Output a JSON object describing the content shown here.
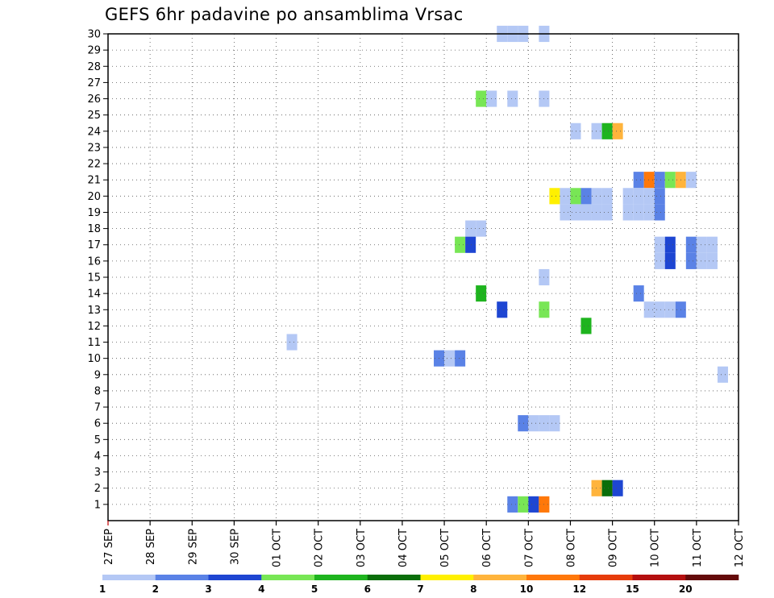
{
  "chart_data": {
    "type": "heatmap",
    "title": "GEFS 6hr padavine po ansamblima Vrsac",
    "xlabel": "",
    "ylabel": "",
    "x_ticks": [
      "27 SEP",
      "28 SEP",
      "29 SEP",
      "30 SEP",
      "01 OCT",
      "02 OCT",
      "03 OCT",
      "04 OCT",
      "05 OCT",
      "06 OCT",
      "07 OCT",
      "08 OCT",
      "09 OCT",
      "10 OCT",
      "11 OCT",
      "12 OCT"
    ],
    "xlim": [
      "27 SEP 00z",
      "12 OCT 00z"
    ],
    "time_step_hours": 6,
    "y_ticks": [
      1,
      2,
      3,
      4,
      5,
      6,
      7,
      8,
      9,
      10,
      11,
      12,
      13,
      14,
      15,
      16,
      17,
      18,
      19,
      20,
      21,
      22,
      23,
      24,
      25,
      26,
      27,
      28,
      29,
      30
    ],
    "ylim": [
      0,
      30
    ],
    "grid": true,
    "colorbar": {
      "placement": "bottom",
      "levels": [
        1,
        2,
        3,
        4,
        5,
        6,
        7,
        8,
        10,
        12,
        15,
        20
      ],
      "colors": [
        "#b4c8f5",
        "#5a82e6",
        "#1e46d2",
        "#78e655",
        "#1eb41e",
        "#0a6e0a",
        "#fff000",
        "#ffb43c",
        "#ff780a",
        "#e63c0a",
        "#b40f0f",
        "#640a0a"
      ]
    },
    "cells_columns": [
      "member",
      "date",
      "hour_utc",
      "category"
    ],
    "cells": [
      [
        30,
        "06 OCT",
        "06",
        1
      ],
      [
        30,
        "06 OCT",
        "12",
        1
      ],
      [
        30,
        "06 OCT",
        "18",
        1
      ],
      [
        30,
        "07 OCT",
        "06",
        1
      ],
      [
        26,
        "05 OCT",
        "18",
        4
      ],
      [
        26,
        "06 OCT",
        "00",
        1
      ],
      [
        26,
        "06 OCT",
        "12",
        1
      ],
      [
        26,
        "07 OCT",
        "06",
        1
      ],
      [
        24,
        "08 OCT",
        "00",
        1
      ],
      [
        24,
        "08 OCT",
        "12",
        1
      ],
      [
        24,
        "08 OCT",
        "18",
        5
      ],
      [
        24,
        "09 OCT",
        "00",
        8
      ],
      [
        21,
        "09 OCT",
        "12",
        2
      ],
      [
        21,
        "09 OCT",
        "18",
        9
      ],
      [
        21,
        "10 OCT",
        "00",
        2
      ],
      [
        21,
        "10 OCT",
        "06",
        4
      ],
      [
        21,
        "10 OCT",
        "12",
        8
      ],
      [
        21,
        "10 OCT",
        "18",
        1
      ],
      [
        20,
        "07 OCT",
        "12",
        7
      ],
      [
        20,
        "07 OCT",
        "18",
        1
      ],
      [
        20,
        "08 OCT",
        "00",
        4
      ],
      [
        20,
        "08 OCT",
        "06",
        2
      ],
      [
        20,
        "08 OCT",
        "12",
        1
      ],
      [
        20,
        "08 OCT",
        "18",
        1
      ],
      [
        20,
        "09 OCT",
        "06",
        1
      ],
      [
        20,
        "09 OCT",
        "12",
        1
      ],
      [
        20,
        "09 OCT",
        "18",
        1
      ],
      [
        20,
        "10 OCT",
        "00",
        2
      ],
      [
        19,
        "07 OCT",
        "18",
        1
      ],
      [
        19,
        "08 OCT",
        "00",
        1
      ],
      [
        19,
        "08 OCT",
        "06",
        1
      ],
      [
        19,
        "08 OCT",
        "12",
        1
      ],
      [
        19,
        "08 OCT",
        "18",
        1
      ],
      [
        19,
        "09 OCT",
        "06",
        1
      ],
      [
        19,
        "09 OCT",
        "12",
        1
      ],
      [
        19,
        "09 OCT",
        "18",
        1
      ],
      [
        19,
        "10 OCT",
        "00",
        2
      ],
      [
        18,
        "05 OCT",
        "12",
        1
      ],
      [
        18,
        "05 OCT",
        "18",
        1
      ],
      [
        17,
        "05 OCT",
        "06",
        4
      ],
      [
        17,
        "05 OCT",
        "12",
        3
      ],
      [
        17,
        "10 OCT",
        "00",
        1
      ],
      [
        17,
        "10 OCT",
        "06",
        3
      ],
      [
        17,
        "10 OCT",
        "18",
        2
      ],
      [
        17,
        "11 OCT",
        "00",
        1
      ],
      [
        17,
        "11 OCT",
        "06",
        1
      ],
      [
        16,
        "10 OCT",
        "00",
        1
      ],
      [
        16,
        "10 OCT",
        "06",
        3
      ],
      [
        16,
        "10 OCT",
        "18",
        2
      ],
      [
        16,
        "11 OCT",
        "00",
        1
      ],
      [
        16,
        "11 OCT",
        "06",
        1
      ],
      [
        15,
        "07 OCT",
        "06",
        1
      ],
      [
        14,
        "05 OCT",
        "18",
        5
      ],
      [
        14,
        "09 OCT",
        "12",
        2
      ],
      [
        13,
        "06 OCT",
        "06",
        3
      ],
      [
        13,
        "07 OCT",
        "06",
        4
      ],
      [
        13,
        "09 OCT",
        "18",
        1
      ],
      [
        13,
        "10 OCT",
        "00",
        1
      ],
      [
        13,
        "10 OCT",
        "06",
        1
      ],
      [
        13,
        "10 OCT",
        "12",
        2
      ],
      [
        12,
        "08 OCT",
        "06",
        5
      ],
      [
        11,
        "01 OCT",
        "06",
        1
      ],
      [
        10,
        "04 OCT",
        "18",
        2
      ],
      [
        10,
        "05 OCT",
        "00",
        1
      ],
      [
        10,
        "05 OCT",
        "06",
        2
      ],
      [
        9,
        "11 OCT",
        "12",
        1
      ],
      [
        6,
        "06 OCT",
        "18",
        2
      ],
      [
        6,
        "07 OCT",
        "00",
        1
      ],
      [
        6,
        "07 OCT",
        "06",
        1
      ],
      [
        6,
        "07 OCT",
        "12",
        1
      ],
      [
        2,
        "08 OCT",
        "12",
        8
      ],
      [
        2,
        "08 OCT",
        "18",
        6
      ],
      [
        2,
        "09 OCT",
        "00",
        3
      ],
      [
        1,
        "06 OCT",
        "12",
        2
      ],
      [
        1,
        "06 OCT",
        "18",
        4
      ],
      [
        1,
        "07 OCT",
        "00",
        3
      ],
      [
        1,
        "07 OCT",
        "06",
        9
      ]
    ]
  }
}
